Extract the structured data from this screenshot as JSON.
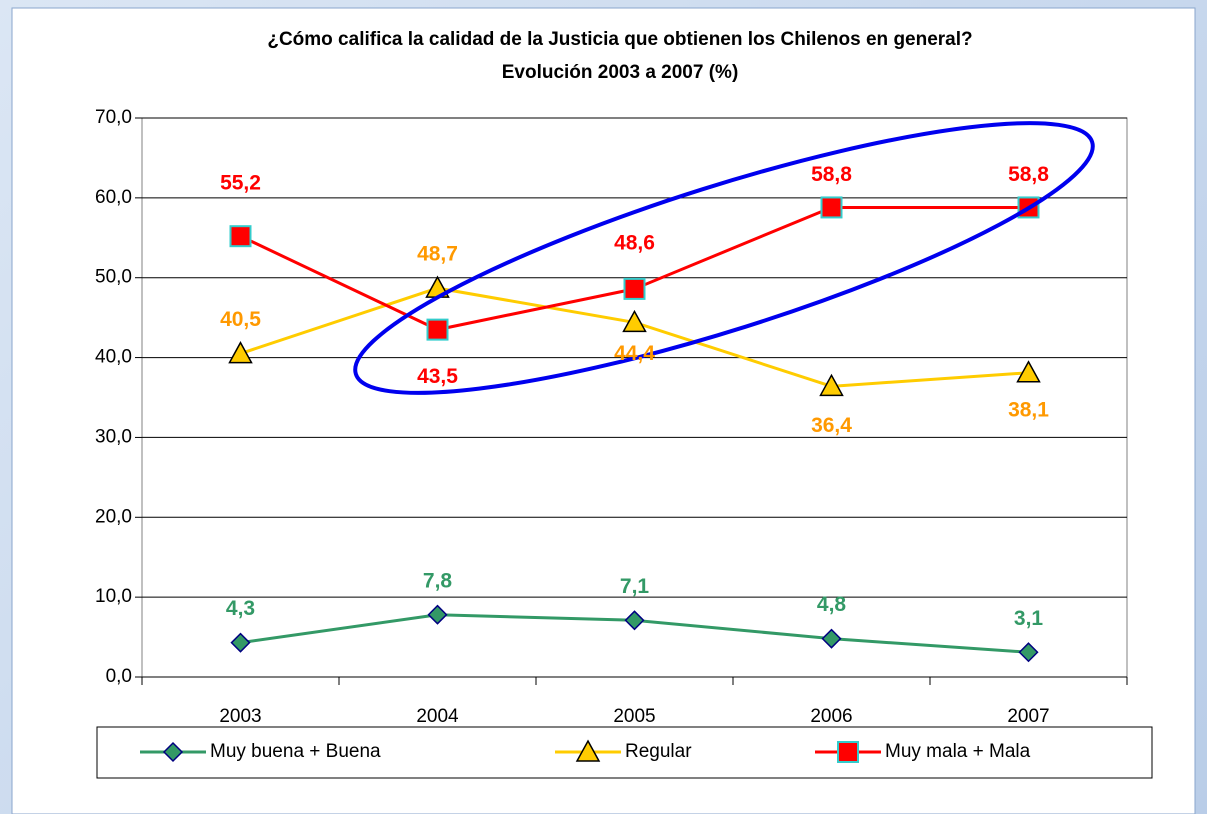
{
  "chart_data": {
    "type": "line",
    "title": "¿Cómo califica la calidad de la Justicia que obtienen los Chilenos en general?",
    "subtitle": "Evolución 2003 a 2007 (%)",
    "categories": [
      "2003",
      "2004",
      "2005",
      "2006",
      "2007"
    ],
    "ylim": [
      0,
      70
    ],
    "yticks": [
      {
        "value": 0,
        "label": "0,0"
      },
      {
        "value": 10,
        "label": "10,0"
      },
      {
        "value": 20,
        "label": "20,0"
      },
      {
        "value": 30,
        "label": "30,0"
      },
      {
        "value": 40,
        "label": "40,0"
      },
      {
        "value": 50,
        "label": "50,0"
      },
      {
        "value": 60,
        "label": "60,0"
      },
      {
        "value": 70,
        "label": "70,0"
      }
    ],
    "grid": true,
    "legend": "bottom",
    "series": [
      {
        "name": "Muy buena + Buena",
        "color": "#339966",
        "label_color": "#339966",
        "marker": "diamond",
        "values": [
          4.3,
          7.8,
          7.1,
          4.8,
          3.1
        ],
        "value_labels": [
          "4,3",
          "7,8",
          "7,1",
          "4,8",
          "3,1"
        ]
      },
      {
        "name": "Regular",
        "color": "#ffcc00",
        "label_color": "#ff9900",
        "marker": "triangle",
        "values": [
          40.5,
          48.7,
          44.4,
          36.4,
          38.1
        ],
        "value_labels": [
          "40,5",
          "48,7",
          "44,4",
          "36,4",
          "38,1"
        ]
      },
      {
        "name": "Muy mala + Mala",
        "color": "#ff0000",
        "label_color": "#ff0000",
        "marker": "square",
        "values": [
          55.2,
          43.5,
          48.6,
          58.8,
          58.8
        ],
        "value_labels": [
          "55,2",
          "43,5",
          "48,6",
          "58,8",
          "58,8"
        ]
      }
    ]
  }
}
